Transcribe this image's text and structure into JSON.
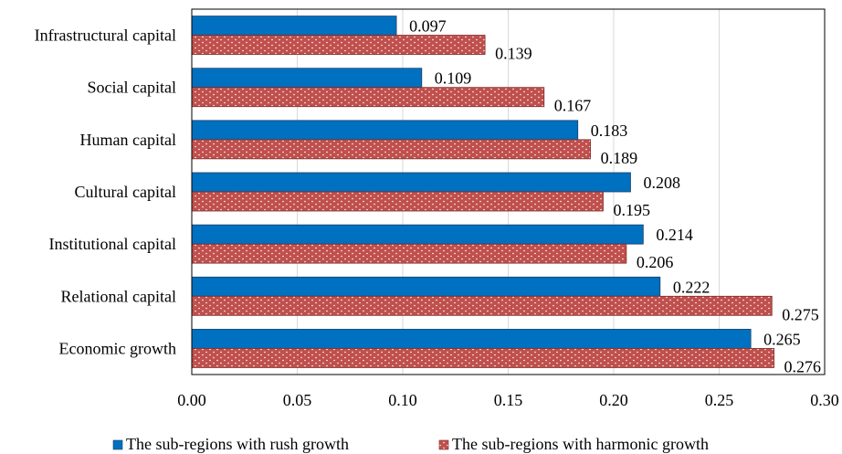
{
  "chart_data": {
    "type": "bar",
    "orientation": "horizontal",
    "categories": [
      "Infrastructural capital",
      "Social capital",
      "Human capital",
      "Cultural capital",
      "Institutional capital",
      "Relational capital",
      "Economic growth"
    ],
    "series": [
      {
        "name": "The sub-regions with rush growth",
        "values": [
          0.097,
          0.109,
          0.183,
          0.208,
          0.214,
          0.222,
          0.265
        ],
        "labels": [
          "0.097",
          "0.109",
          "0.183",
          "0.208",
          "0.214",
          "0.222",
          "0.265"
        ],
        "color": "#0070C0"
      },
      {
        "name": "The sub-regions with harmonic growth",
        "values": [
          0.139,
          0.167,
          0.189,
          0.195,
          0.206,
          0.275,
          0.276
        ],
        "labels": [
          "0.139",
          "0.167",
          "0.189",
          "0.195",
          "0.206",
          "0.275",
          "0.276"
        ],
        "color": "#C0504D",
        "pattern": "dotted"
      }
    ],
    "xlim": [
      0,
      0.3
    ],
    "xticks": [
      "0.00",
      "0.05",
      "0.10",
      "0.15",
      "0.20",
      "0.25",
      "0.30"
    ],
    "grid": "vertical",
    "legend": "bottom",
    "title": "",
    "xlabel": "",
    "ylabel": ""
  }
}
